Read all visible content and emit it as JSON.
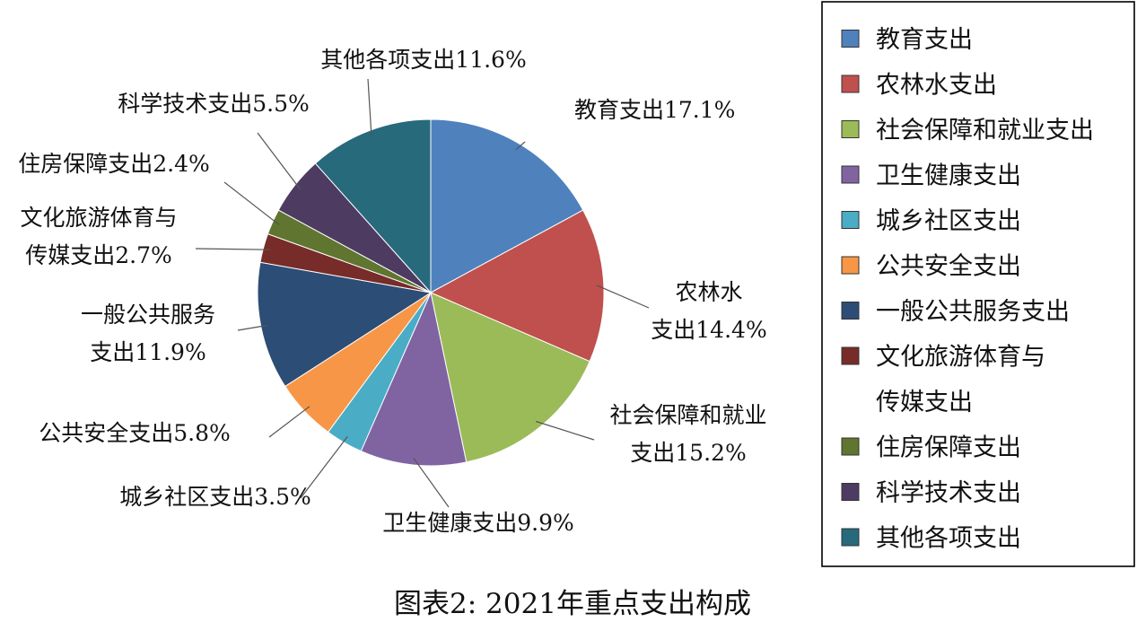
{
  "chart_data": {
    "type": "pie",
    "caption": "图表2: 2021年重点支出构成",
    "start_angle_deg": 0,
    "direction": "clockwise",
    "legend_placement": "right",
    "slices": [
      {
        "name": "教育支出",
        "value": 17.1,
        "slice_label": [
          "教育支出17.1%"
        ],
        "legend_label": [
          "教育支出"
        ],
        "color": "#4f81bd"
      },
      {
        "name": "农林水支出",
        "value": 14.4,
        "slice_label": [
          "农林水",
          "支出14.4%"
        ],
        "legend_label": [
          "农林水支出"
        ],
        "color": "#c0504d"
      },
      {
        "name": "社会保障和就业支出",
        "value": 15.2,
        "slice_label": [
          "社会保障和就业",
          "支出15.2%"
        ],
        "legend_label": [
          "社会保障和就业支出"
        ],
        "color": "#9bbb59"
      },
      {
        "name": "卫生健康支出",
        "value": 9.9,
        "slice_label": [
          "卫生健康支出9.9%"
        ],
        "legend_label": [
          "卫生健康支出"
        ],
        "color": "#8064a2"
      },
      {
        "name": "城乡社区支出",
        "value": 3.5,
        "slice_label": [
          "城乡社区支出3.5%"
        ],
        "legend_label": [
          "城乡社区支出"
        ],
        "color": "#4bacc6"
      },
      {
        "name": "公共安全支出",
        "value": 5.8,
        "slice_label": [
          "公共安全支出5.8%"
        ],
        "legend_label": [
          "公共安全支出"
        ],
        "color": "#f79646"
      },
      {
        "name": "一般公共服务支出",
        "value": 11.9,
        "slice_label": [
          "一般公共服务",
          "支出11.9%"
        ],
        "legend_label": [
          "一般公共服务支出"
        ],
        "color": "#2c4d75"
      },
      {
        "name": "文化旅游体育与传媒支出",
        "value": 2.7,
        "slice_label": [
          "文化旅游体育与",
          "传媒支出2.7%"
        ],
        "legend_label": [
          "文化旅游体育与",
          "传媒支出"
        ],
        "color": "#772c2a"
      },
      {
        "name": "住房保障支出",
        "value": 2.4,
        "slice_label": [
          "住房保障支出2.4%"
        ],
        "legend_label": [
          "住房保障支出"
        ],
        "color": "#5f7530"
      },
      {
        "name": "科学技术支出",
        "value": 5.5,
        "slice_label": [
          "科学技术支出5.5%"
        ],
        "legend_label": [
          "科学技术支出"
        ],
        "color": "#4d3b62"
      },
      {
        "name": "其他各项支出",
        "value": 11.6,
        "slice_label": [
          "其他各项支出11.6%"
        ],
        "legend_label": [
          "其他各项支出"
        ],
        "color": "#276a7c"
      }
    ]
  }
}
